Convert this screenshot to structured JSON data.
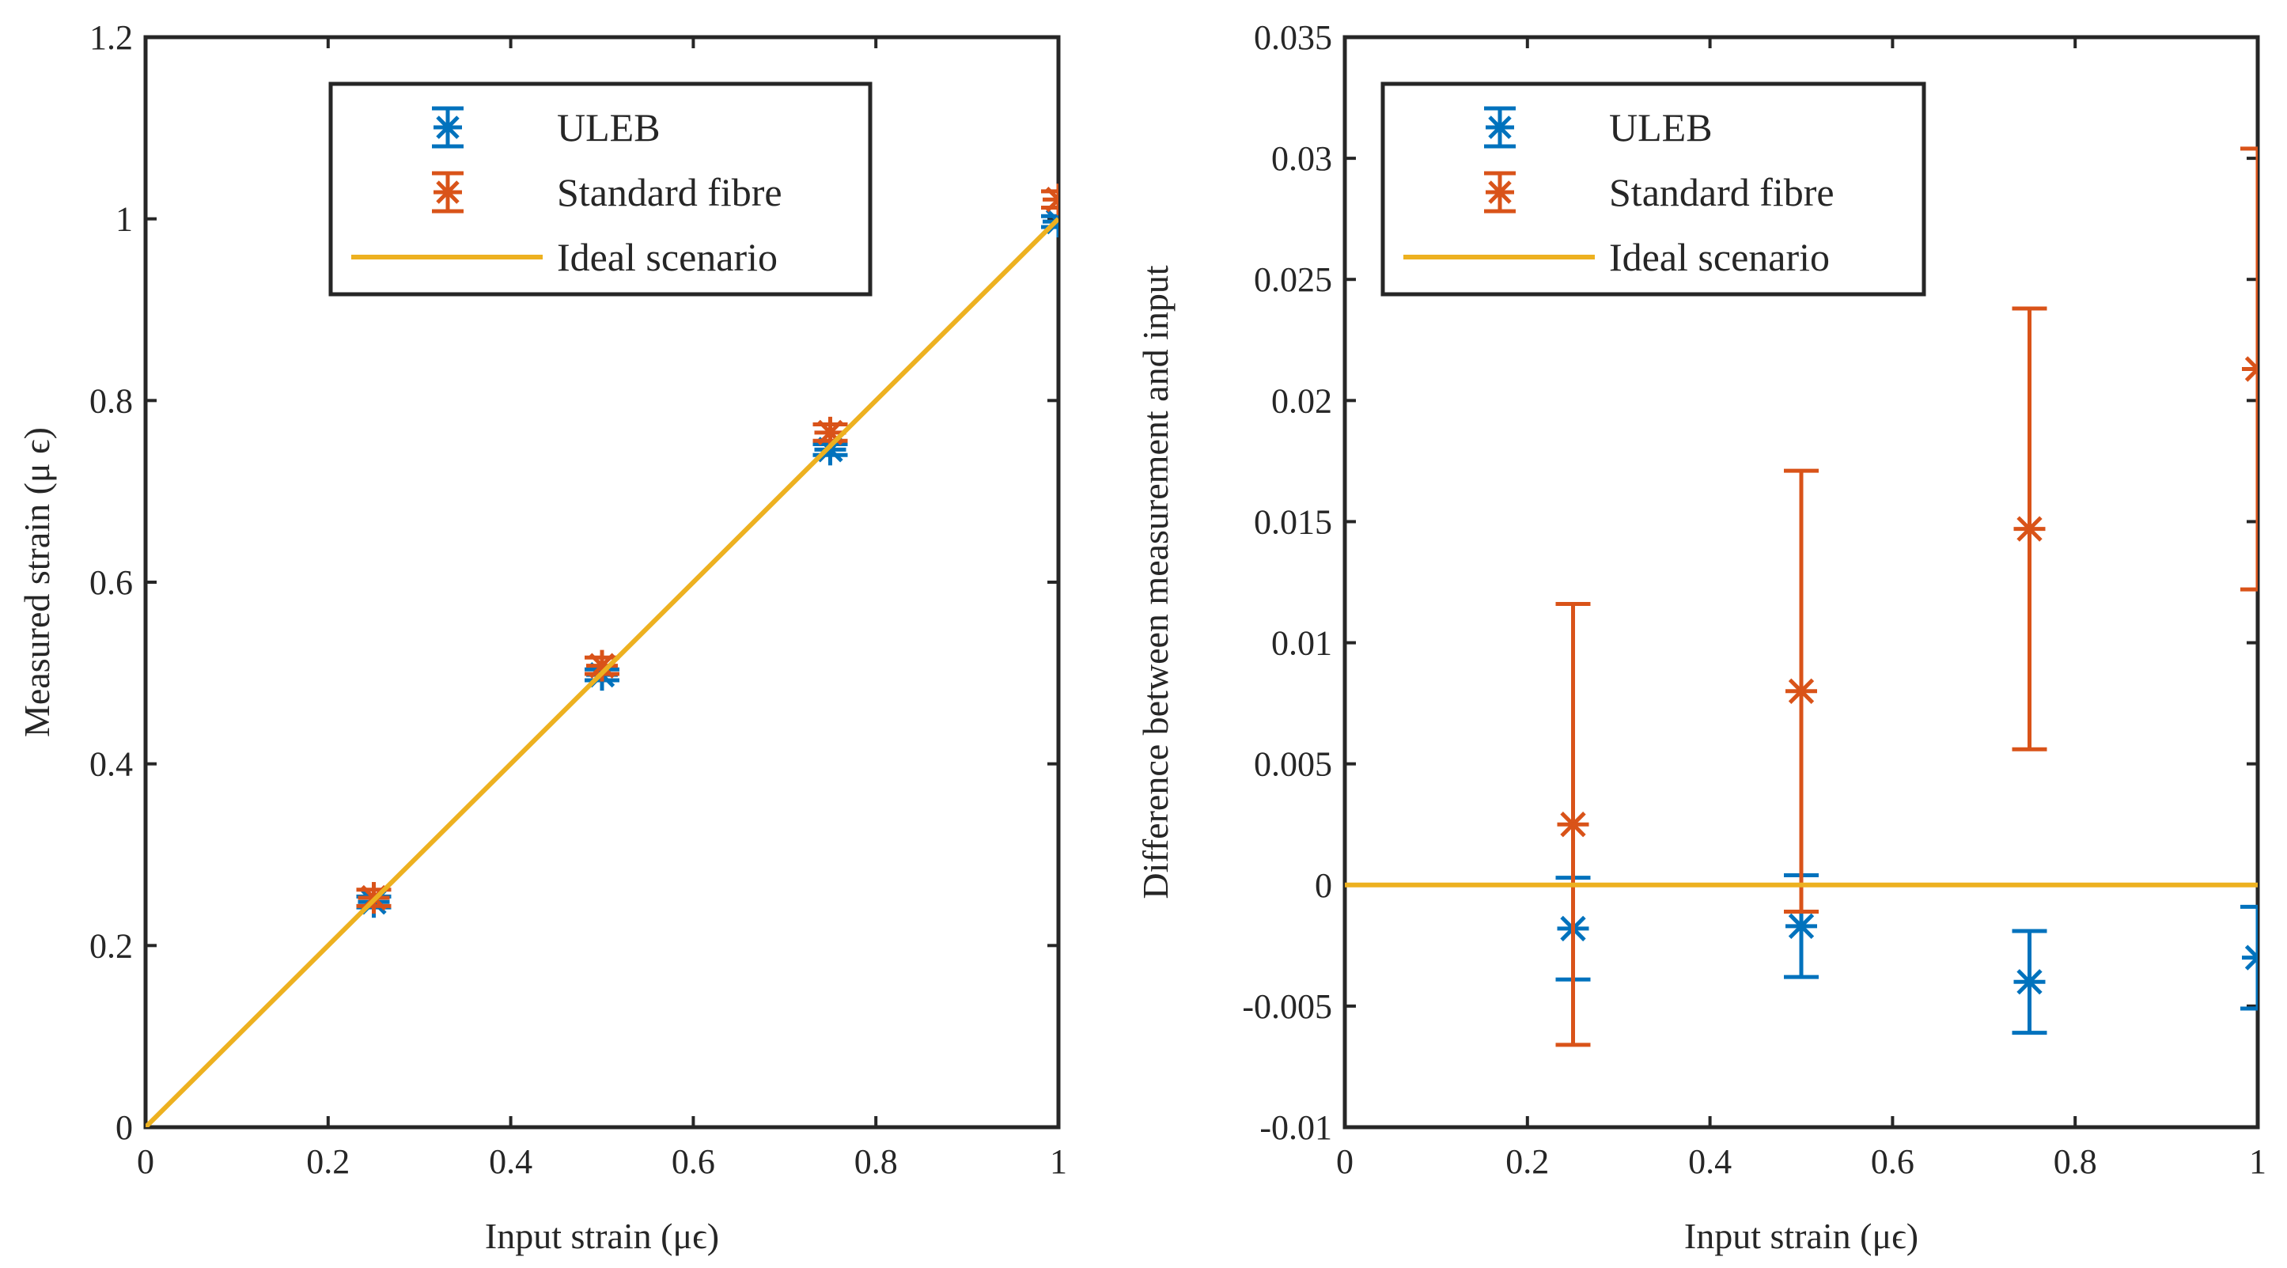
{
  "colors": {
    "uleb": "#0072BD",
    "standard": "#D95319",
    "ideal": "#EDB120",
    "axes": "#262626"
  },
  "chart_data": [
    {
      "type": "scatter",
      "xlabel": "Input strain (μϵ)",
      "ylabel": "Measured strain (μ ϵ)",
      "xlim": [
        0,
        1
      ],
      "ylim": [
        0,
        1.2
      ],
      "xticks": [
        "0",
        "0.2",
        "0.4",
        "0.6",
        "0.8",
        "1"
      ],
      "yticks": [
        "0",
        "0.2",
        "0.4",
        "0.6",
        "0.8",
        "1",
        "1.2"
      ],
      "grid": false,
      "legend_position": "top",
      "series": [
        {
          "name": "ULEB",
          "marker": "asterisk",
          "x": [
            0.25,
            0.5,
            0.75,
            1.0
          ],
          "y": [
            0.248,
            0.498,
            0.746,
            0.997
          ],
          "err": [
            0.006,
            0.006,
            0.006,
            0.006
          ]
        },
        {
          "name": "Standard fibre",
          "marker": "asterisk",
          "x": [
            0.25,
            0.5,
            0.75,
            1.0
          ],
          "y": [
            0.2525,
            0.508,
            0.7647,
            1.0213
          ],
          "err": [
            0.009,
            0.009,
            0.009,
            0.009
          ]
        },
        {
          "name": "Ideal scenario",
          "marker": "line",
          "x": [
            0,
            1
          ],
          "y": [
            0,
            1
          ]
        }
      ]
    },
    {
      "type": "scatter",
      "xlabel": "Input strain (μϵ)",
      "ylabel": "Difference between measurement and input",
      "xlim": [
        0,
        1
      ],
      "ylim": [
        -0.01,
        0.035
      ],
      "xticks": [
        "0",
        "0.2",
        "0.4",
        "0.6",
        "0.8",
        "1"
      ],
      "yticks": [
        "-0.01",
        "-0.005",
        "0",
        "0.005",
        "0.01",
        "0.015",
        "0.02",
        "0.025",
        "0.03",
        "0.035"
      ],
      "grid": false,
      "legend_position": "top",
      "series": [
        {
          "name": "ULEB",
          "marker": "asterisk",
          "x": [
            0.25,
            0.5,
            0.75,
            1.0
          ],
          "y": [
            -0.0018,
            -0.0017,
            -0.004,
            -0.003
          ],
          "err": [
            0.0021,
            0.0021,
            0.0021,
            0.0021
          ]
        },
        {
          "name": "Standard fibre",
          "marker": "asterisk",
          "x": [
            0.25,
            0.5,
            0.75,
            1.0
          ],
          "y": [
            0.0025,
            0.008,
            0.0147,
            0.0213
          ],
          "err": [
            0.0091,
            0.0091,
            0.0091,
            0.0091
          ]
        },
        {
          "name": "Ideal scenario",
          "marker": "line",
          "x": [
            0,
            1
          ],
          "y": [
            0,
            0
          ]
        }
      ]
    }
  ]
}
